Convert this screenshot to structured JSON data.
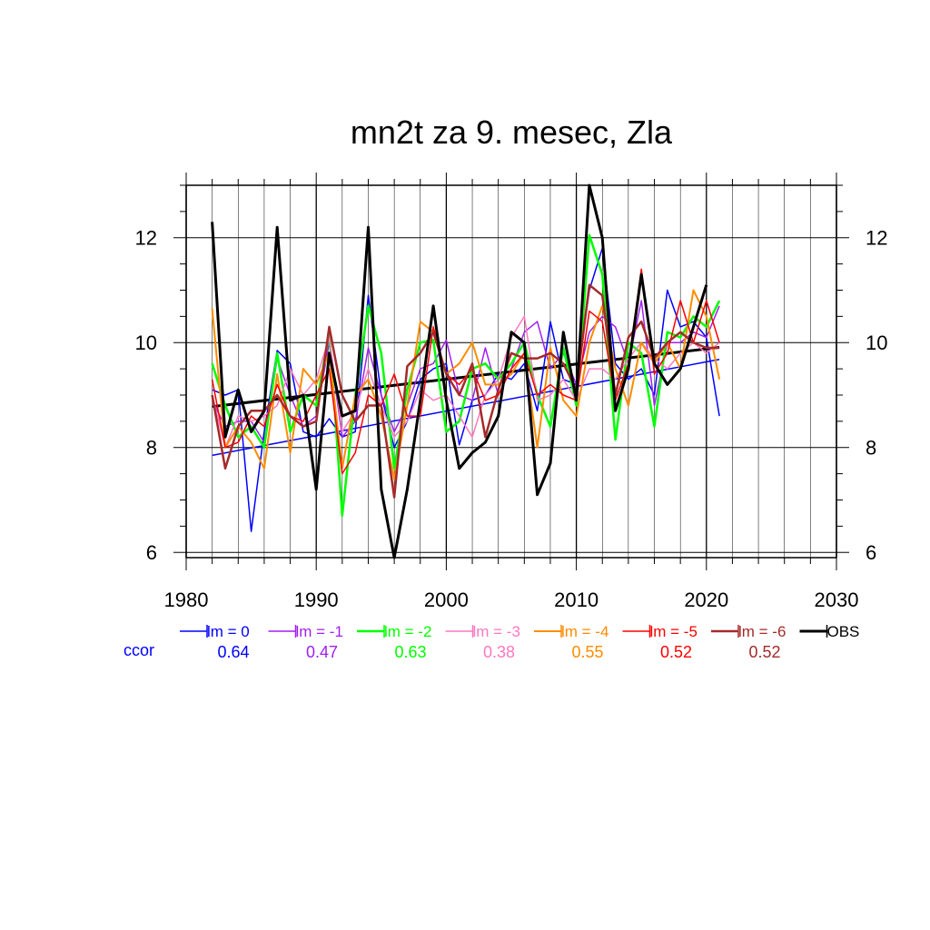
{
  "chart_data": {
    "type": "line",
    "title": "mn2t za 9. mesec, Zla",
    "xlim": [
      1980,
      2030
    ],
    "ylim": [
      5.9,
      13.0
    ],
    "x_ticks": [
      1980,
      1990,
      2000,
      2010,
      2020,
      2030
    ],
    "y_ticks": [
      6,
      8,
      10,
      12
    ],
    "grid": true,
    "x": [
      1982,
      1983,
      1984,
      1985,
      1986,
      1987,
      1988,
      1989,
      1990,
      1991,
      1992,
      1993,
      1994,
      1995,
      1996,
      1997,
      1998,
      1999,
      2000,
      2001,
      2002,
      2003,
      2004,
      2005,
      2006,
      2007,
      2008,
      2009,
      2010,
      2011,
      2012,
      2013,
      2014,
      2015,
      2016,
      2017,
      2018,
      2019,
      2020,
      2021
    ],
    "series": [
      {
        "name": "lm = 0",
        "color": "#0000ff",
        "width": 1.5,
        "values": [
          9.1,
          9.0,
          9.1,
          6.4,
          8.3,
          9.85,
          9.6,
          8.3,
          8.2,
          8.55,
          8.2,
          8.3,
          10.9,
          9.0,
          8.0,
          8.5,
          9.3,
          9.5,
          9.6,
          8.05,
          8.9,
          9.0,
          9.4,
          9.3,
          9.6,
          8.7,
          10.4,
          9.3,
          9.2,
          11.0,
          11.8,
          9.6,
          9.3,
          9.5,
          9.0,
          11.0,
          10.3,
          10.4,
          10.1,
          8.6
        ]
      },
      {
        "name": "lm = -1",
        "color": "#a020f0",
        "width": 1.5,
        "values": [
          8.9,
          8.4,
          8.5,
          8.5,
          8.1,
          9.7,
          9.0,
          8.4,
          8.6,
          10.0,
          8.2,
          8.5,
          9.9,
          9.0,
          8.3,
          8.8,
          9.5,
          9.6,
          10.05,
          9.0,
          8.9,
          9.9,
          9.0,
          9.5,
          10.2,
          10.4,
          9.5,
          9.8,
          9.2,
          10.2,
          10.5,
          10.3,
          9.6,
          10.8,
          8.8,
          10.0,
          10.0,
          10.2,
          10.1,
          10.7
        ]
      },
      {
        "name": "lm = -2",
        "color": "#00ff00",
        "width": 2.5,
        "values": [
          9.6,
          8.8,
          8.2,
          8.4,
          8.0,
          9.8,
          8.3,
          9.0,
          8.8,
          10.2,
          6.7,
          9.0,
          10.7,
          9.8,
          7.6,
          9.1,
          10.0,
          10.05,
          8.3,
          8.5,
          9.5,
          9.6,
          9.3,
          9.6,
          10.0,
          9.0,
          8.4,
          9.9,
          8.8,
          12.05,
          11.3,
          8.15,
          10.0,
          9.8,
          8.4,
          10.2,
          10.1,
          10.5,
          10.3,
          10.8
        ]
      },
      {
        "name": "lm = -3",
        "color": "#ff77c0",
        "width": 1.5,
        "values": [
          9.0,
          8.0,
          8.6,
          8.5,
          8.6,
          8.8,
          9.5,
          9.0,
          9.3,
          10.1,
          8.3,
          8.7,
          9.5,
          8.8,
          8.2,
          8.5,
          9.1,
          8.9,
          9.0,
          8.6,
          8.2,
          9.0,
          9.3,
          10.1,
          10.5,
          8.9,
          9.0,
          9.3,
          8.9,
          9.5,
          9.5,
          9.3,
          9.7,
          10.0,
          9.7,
          9.5,
          9.8,
          10.0,
          9.8,
          10.0
        ]
      },
      {
        "name": "lm = -4",
        "color": "#ff8c00",
        "width": 2.0,
        "values": [
          10.65,
          8.0,
          8.4,
          8.1,
          7.6,
          9.4,
          7.9,
          9.5,
          9.2,
          9.8,
          7.6,
          9.0,
          9.3,
          8.6,
          7.4,
          8.8,
          10.4,
          10.2,
          9.4,
          9.6,
          10.0,
          9.2,
          9.2,
          9.4,
          9.8,
          8.0,
          9.9,
          8.9,
          8.6,
          10.0,
          10.7,
          9.5,
          8.8,
          10.0,
          9.6,
          10.0,
          9.5,
          11.0,
          10.5,
          9.3
        ]
      },
      {
        "name": "lm = -5",
        "color": "#ff0000",
        "width": 1.5,
        "values": [
          9.3,
          8.0,
          8.1,
          8.6,
          8.4,
          9.2,
          8.6,
          8.5,
          9.0,
          9.5,
          7.5,
          7.9,
          9.0,
          8.8,
          9.4,
          8.6,
          8.6,
          10.3,
          9.4,
          9.2,
          9.5,
          8.9,
          9.0,
          9.5,
          9.8,
          9.0,
          9.2,
          9.0,
          8.9,
          10.6,
          10.4,
          8.9,
          9.6,
          11.4,
          9.4,
          9.8,
          10.8,
          10.0,
          10.8,
          10.0
        ]
      },
      {
        "name": "lm = -6",
        "color": "#a52a2a",
        "width": 2.5,
        "values": [
          9.0,
          7.6,
          8.4,
          8.7,
          8.7,
          9.0,
          8.6,
          8.4,
          8.5,
          10.3,
          9.0,
          8.5,
          8.8,
          8.8,
          7.05,
          9.55,
          9.8,
          10.2,
          9.4,
          9.0,
          9.6,
          8.2,
          9.1,
          9.8,
          9.7,
          9.7,
          9.8,
          9.6,
          9.1,
          11.1,
          10.9,
          9.0,
          10.1,
          10.4,
          9.7,
          10.0,
          10.2,
          10.0,
          9.9,
          9.9
        ]
      },
      {
        "name": "OBS",
        "color": "#000000",
        "width": 3.0,
        "values": [
          12.3,
          8.2,
          9.1,
          8.3,
          8.7,
          12.2,
          8.9,
          9.0,
          7.2,
          9.8,
          8.6,
          8.7,
          12.2,
          7.2,
          5.9,
          7.2,
          8.9,
          10.7,
          8.9,
          7.6,
          7.9,
          8.1,
          8.6,
          10.2,
          10.0,
          7.1,
          7.7,
          10.2,
          8.9,
          13.0,
          12.0,
          8.7,
          9.5,
          11.3,
          9.6,
          9.2,
          9.5,
          10.3,
          11.1,
          null
        ]
      }
    ],
    "trend_lines": [
      {
        "name": "lm = 0",
        "color": "#0000ff",
        "width": 1.5,
        "x": [
          1982,
          2021
        ],
        "y": [
          7.85,
          9.68
        ]
      },
      {
        "name": "OBS",
        "color": "#000000",
        "width": 3.0,
        "x": [
          1982,
          2021
        ],
        "y": [
          8.78,
          9.91
        ]
      }
    ],
    "legend": {
      "placement": "bottom",
      "entries": [
        "lm = 0",
        "lm = -1",
        "lm = -2",
        "lm = -3",
        "lm = -4",
        "lm = -5",
        "lm = -6",
        "OBS"
      ]
    },
    "ccor": {
      "label": "ccor",
      "values": [
        "0.64",
        "0.47",
        "0.63",
        "0.38",
        "0.55",
        "0.52",
        "0.52"
      ]
    }
  }
}
